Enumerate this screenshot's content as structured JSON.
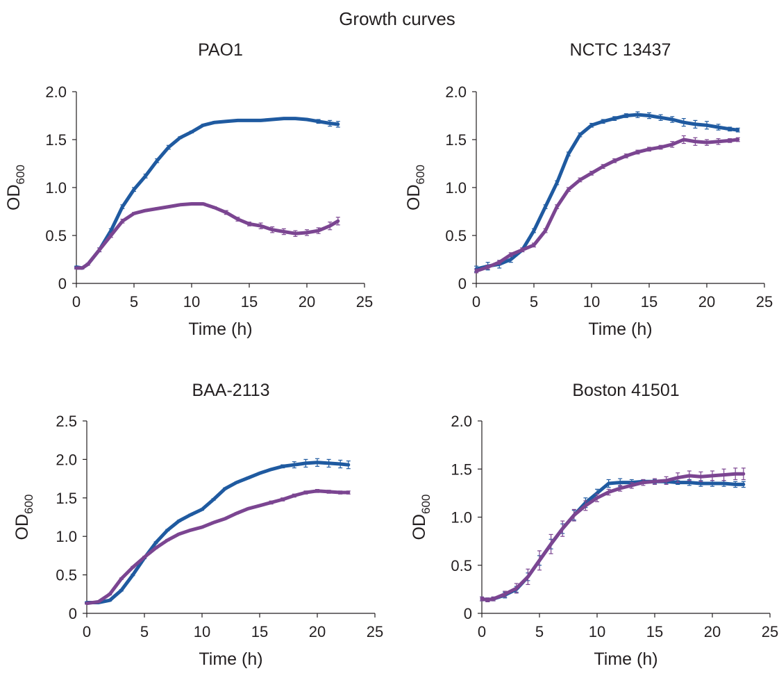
{
  "figure_title": "Growth curves",
  "colors": {
    "blue": "#1f5aa0",
    "purple": "#7b4591",
    "axis": "#231f20"
  },
  "chart_data": [
    {
      "type": "line",
      "title": "PAO1",
      "xlabel": "Time (h)",
      "ylabel": {
        "base": "OD",
        "sub": "600"
      },
      "xlim": [
        0,
        25
      ],
      "ylim": [
        0,
        2.0
      ],
      "xticks": [
        0,
        5,
        10,
        15,
        20,
        25
      ],
      "yticks": [
        0,
        0.5,
        1.0,
        1.5,
        2.0
      ],
      "ytick_labels": [
        "0",
        "0.5",
        "1.0",
        "1.5",
        "2.0"
      ],
      "series": [
        {
          "name": "blue",
          "color": "#1f5aa0",
          "x": [
            0,
            0.5,
            1,
            2,
            3,
            4,
            5,
            6,
            7,
            8,
            9,
            10,
            11,
            12,
            13,
            14,
            15,
            16,
            17,
            18,
            19,
            20,
            21,
            22,
            22.7
          ],
          "y": [
            0.17,
            0.16,
            0.2,
            0.35,
            0.55,
            0.8,
            0.98,
            1.12,
            1.28,
            1.42,
            1.52,
            1.58,
            1.65,
            1.68,
            1.69,
            1.7,
            1.7,
            1.7,
            1.71,
            1.72,
            1.72,
            1.71,
            1.69,
            1.67,
            1.66
          ],
          "err": [
            0.01,
            0.01,
            0.01,
            0.02,
            0.02,
            0.02,
            0.02,
            0.02,
            0.02,
            0.02,
            0.01,
            0.01,
            0.01,
            0.01,
            0.01,
            0.01,
            0.01,
            0.01,
            0.01,
            0.01,
            0.01,
            0.01,
            0.02,
            0.03,
            0.03
          ]
        },
        {
          "name": "purple",
          "color": "#7b4591",
          "x": [
            0,
            0.5,
            1,
            2,
            3,
            4,
            5,
            6,
            7,
            8,
            9,
            10,
            11,
            12,
            13,
            14,
            15,
            16,
            17,
            18,
            19,
            20,
            21,
            22,
            22.7
          ],
          "y": [
            0.16,
            0.16,
            0.2,
            0.35,
            0.5,
            0.65,
            0.73,
            0.76,
            0.78,
            0.8,
            0.82,
            0.83,
            0.83,
            0.79,
            0.74,
            0.67,
            0.62,
            0.6,
            0.56,
            0.54,
            0.52,
            0.53,
            0.55,
            0.6,
            0.65
          ],
          "err": [
            0.01,
            0.01,
            0.01,
            0.02,
            0.02,
            0.02,
            0.01,
            0.01,
            0.01,
            0.01,
            0.01,
            0.01,
            0.01,
            0.01,
            0.02,
            0.02,
            0.02,
            0.03,
            0.03,
            0.03,
            0.03,
            0.03,
            0.03,
            0.04,
            0.04
          ]
        }
      ]
    },
    {
      "type": "line",
      "title": "NCTC 13437",
      "xlabel": "Time (h)",
      "ylabel": {
        "base": "OD",
        "sub": "600"
      },
      "xlim": [
        0,
        25
      ],
      "ylim": [
        0,
        2.0
      ],
      "xticks": [
        0,
        5,
        10,
        15,
        20,
        25
      ],
      "yticks": [
        0,
        0.5,
        1.0,
        1.5,
        2.0
      ],
      "ytick_labels": [
        "0",
        "0.5",
        "1.0",
        "1.5",
        "2.0"
      ],
      "series": [
        {
          "name": "blue",
          "color": "#1f5aa0",
          "x": [
            0,
            1,
            2,
            3,
            4,
            5,
            6,
            7,
            8,
            9,
            10,
            11,
            12,
            13,
            14,
            15,
            16,
            17,
            18,
            19,
            20,
            21,
            22,
            22.7
          ],
          "y": [
            0.15,
            0.18,
            0.2,
            0.25,
            0.35,
            0.55,
            0.8,
            1.05,
            1.35,
            1.55,
            1.65,
            1.69,
            1.72,
            1.75,
            1.76,
            1.75,
            1.73,
            1.71,
            1.68,
            1.66,
            1.65,
            1.63,
            1.61,
            1.6
          ],
          "err": [
            0.03,
            0.04,
            0.04,
            0.03,
            0.02,
            0.02,
            0.02,
            0.02,
            0.02,
            0.02,
            0.02,
            0.02,
            0.02,
            0.02,
            0.03,
            0.03,
            0.03,
            0.03,
            0.04,
            0.04,
            0.04,
            0.03,
            0.02,
            0.02
          ]
        },
        {
          "name": "purple",
          "color": "#7b4591",
          "x": [
            0,
            1,
            2,
            3,
            4,
            5,
            6,
            7,
            8,
            9,
            10,
            11,
            12,
            13,
            14,
            15,
            16,
            17,
            18,
            19,
            20,
            21,
            22,
            22.7
          ],
          "y": [
            0.13,
            0.17,
            0.22,
            0.3,
            0.35,
            0.4,
            0.55,
            0.8,
            0.98,
            1.08,
            1.15,
            1.22,
            1.28,
            1.33,
            1.37,
            1.4,
            1.42,
            1.45,
            1.5,
            1.48,
            1.47,
            1.48,
            1.49,
            1.5
          ],
          "err": [
            0.02,
            0.02,
            0.02,
            0.02,
            0.02,
            0.02,
            0.02,
            0.02,
            0.02,
            0.02,
            0.02,
            0.02,
            0.02,
            0.02,
            0.02,
            0.02,
            0.02,
            0.03,
            0.04,
            0.04,
            0.03,
            0.03,
            0.02,
            0.02
          ]
        }
      ]
    },
    {
      "type": "line",
      "title": "BAA-2113",
      "xlabel": "Time (h)",
      "ylabel": {
        "base": "OD",
        "sub": "600"
      },
      "xlim": [
        0,
        25
      ],
      "ylim": [
        0,
        2.5
      ],
      "xticks": [
        0,
        5,
        10,
        15,
        20,
        25
      ],
      "yticks": [
        0,
        0.5,
        1.0,
        1.5,
        2.0,
        2.5
      ],
      "ytick_labels": [
        "0",
        "0.5",
        "1.0",
        "1.5",
        "2.0",
        "2.5"
      ],
      "series": [
        {
          "name": "blue",
          "color": "#1f5aa0",
          "x": [
            0,
            1,
            2,
            3,
            4,
            5,
            6,
            7,
            8,
            9,
            10,
            11,
            12,
            13,
            14,
            15,
            16,
            17,
            18,
            19,
            20,
            21,
            22,
            22.7
          ],
          "y": [
            0.14,
            0.14,
            0.17,
            0.3,
            0.5,
            0.72,
            0.92,
            1.08,
            1.2,
            1.28,
            1.35,
            1.48,
            1.62,
            1.7,
            1.76,
            1.82,
            1.87,
            1.91,
            1.93,
            1.95,
            1.96,
            1.95,
            1.94,
            1.93
          ],
          "err": [
            0.01,
            0.01,
            0.01,
            0.01,
            0.01,
            0.01,
            0.01,
            0.01,
            0.01,
            0.01,
            0.01,
            0.01,
            0.01,
            0.01,
            0.01,
            0.01,
            0.01,
            0.02,
            0.04,
            0.05,
            0.05,
            0.05,
            0.05,
            0.05
          ]
        },
        {
          "name": "purple",
          "color": "#7b4591",
          "x": [
            0,
            1,
            2,
            3,
            4,
            5,
            6,
            7,
            8,
            9,
            10,
            11,
            12,
            13,
            14,
            15,
            16,
            17,
            18,
            19,
            20,
            21,
            22,
            22.7
          ],
          "y": [
            0.13,
            0.15,
            0.25,
            0.45,
            0.6,
            0.73,
            0.85,
            0.95,
            1.03,
            1.08,
            1.12,
            1.18,
            1.23,
            1.3,
            1.36,
            1.4,
            1.44,
            1.48,
            1.53,
            1.57,
            1.59,
            1.58,
            1.57,
            1.57
          ],
          "err": [
            0.01,
            0.01,
            0.01,
            0.01,
            0.01,
            0.01,
            0.01,
            0.01,
            0.01,
            0.01,
            0.01,
            0.01,
            0.01,
            0.01,
            0.01,
            0.01,
            0.02,
            0.02,
            0.02,
            0.02,
            0.02,
            0.02,
            0.02,
            0.02
          ]
        }
      ]
    },
    {
      "type": "line",
      "title": "Boston 41501",
      "xlabel": "Time (h)",
      "ylabel": {
        "base": "OD",
        "sub": "600"
      },
      "xlim": [
        0,
        25
      ],
      "ylim": [
        0,
        2.0
      ],
      "xticks": [
        0,
        5,
        10,
        15,
        20,
        25
      ],
      "yticks": [
        0,
        0.5,
        1.0,
        1.5,
        2.0
      ],
      "ytick_labels": [
        "0",
        "0.5",
        "1.0",
        "1.5",
        "2.0"
      ],
      "series": [
        {
          "name": "blue",
          "color": "#1f5aa0",
          "x": [
            0,
            0.5,
            1,
            2,
            3,
            4,
            5,
            6,
            7,
            8,
            9,
            10,
            11,
            12,
            13,
            14,
            15,
            16,
            17,
            18,
            19,
            20,
            21,
            22,
            22.7
          ],
          "y": [
            0.15,
            0.14,
            0.15,
            0.19,
            0.25,
            0.38,
            0.55,
            0.72,
            0.88,
            1.02,
            1.15,
            1.25,
            1.35,
            1.36,
            1.36,
            1.37,
            1.37,
            1.37,
            1.36,
            1.36,
            1.35,
            1.35,
            1.35,
            1.34,
            1.34
          ],
          "err": [
            0.02,
            0.02,
            0.02,
            0.03,
            0.03,
            0.04,
            0.05,
            0.05,
            0.05,
            0.05,
            0.05,
            0.04,
            0.04,
            0.04,
            0.03,
            0.02,
            0.02,
            0.02,
            0.02,
            0.03,
            0.03,
            0.03,
            0.03,
            0.03,
            0.03
          ]
        },
        {
          "name": "purple",
          "color": "#7b4591",
          "x": [
            0,
            0.5,
            1,
            2,
            3,
            4,
            5,
            6,
            7,
            8,
            9,
            10,
            11,
            12,
            13,
            14,
            15,
            16,
            17,
            18,
            19,
            20,
            21,
            22,
            22.7
          ],
          "y": [
            0.15,
            0.14,
            0.15,
            0.2,
            0.26,
            0.38,
            0.55,
            0.72,
            0.88,
            1.02,
            1.12,
            1.2,
            1.26,
            1.3,
            1.33,
            1.36,
            1.37,
            1.38,
            1.41,
            1.43,
            1.42,
            1.43,
            1.44,
            1.45,
            1.45
          ],
          "err": [
            0.02,
            0.02,
            0.02,
            0.03,
            0.05,
            0.08,
            0.1,
            0.1,
            0.08,
            0.06,
            0.05,
            0.04,
            0.03,
            0.03,
            0.03,
            0.03,
            0.03,
            0.04,
            0.05,
            0.05,
            0.05,
            0.05,
            0.06,
            0.06,
            0.06
          ]
        }
      ]
    }
  ]
}
